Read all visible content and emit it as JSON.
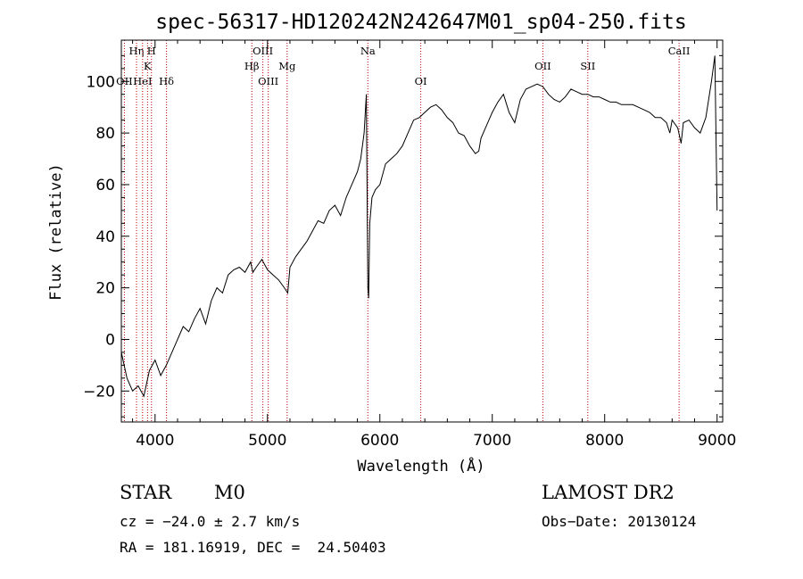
{
  "chart_data": {
    "type": "line",
    "title": "spec-56317-HD120242N242647M01_sp04-250.fits",
    "xlabel": "Wavelength (Å)",
    "ylabel": "Flux (relative)",
    "xlim": [
      3700,
      9050
    ],
    "ylim": [
      -32,
      116
    ],
    "xticks": [
      4000,
      5000,
      6000,
      7000,
      8000,
      9000
    ],
    "yticks": [
      -20,
      0,
      20,
      40,
      60,
      80,
      100
    ],
    "grid": false,
    "series": [
      {
        "x": [
          3700,
          3750,
          3800,
          3850,
          3900,
          3950,
          4000,
          4050,
          4100,
          4150,
          4200,
          4250,
          4300,
          4350,
          4400,
          4450,
          4500,
          4550,
          4600,
          4650,
          4700,
          4750,
          4800,
          4850,
          4870,
          4900,
          4950,
          5000,
          5050,
          5100,
          5150,
          5180,
          5200,
          5250,
          5300,
          5350,
          5400,
          5450,
          5500,
          5550,
          5600,
          5650,
          5700,
          5750,
          5800,
          5830,
          5860,
          5880,
          5893,
          5900,
          5910,
          5930,
          5960,
          6000,
          6050,
          6100,
          6150,
          6200,
          6250,
          6300,
          6350,
          6400,
          6450,
          6500,
          6550,
          6600,
          6650,
          6700,
          6750,
          6800,
          6850,
          6880,
          6900,
          6950,
          7000,
          7050,
          7100,
          7150,
          7200,
          7250,
          7300,
          7350,
          7400,
          7450,
          7500,
          7550,
          7600,
          7650,
          7700,
          7750,
          7800,
          7850,
          7900,
          7950,
          8000,
          8050,
          8100,
          8150,
          8200,
          8250,
          8300,
          8350,
          8400,
          8450,
          8500,
          8550,
          8580,
          8600,
          8650,
          8680,
          8700,
          8750,
          8800,
          8850,
          8900,
          8950,
          8980,
          9000
        ],
        "y": [
          -5,
          -15,
          -20,
          -18,
          -22,
          -12,
          -8,
          -14,
          -10,
          -5,
          0,
          5,
          3,
          8,
          12,
          6,
          15,
          20,
          18,
          25,
          27,
          28,
          26,
          30,
          26,
          28,
          31,
          27,
          25,
          23,
          20,
          18,
          28,
          32,
          35,
          38,
          42,
          46,
          45,
          50,
          52,
          48,
          55,
          60,
          65,
          70,
          80,
          95,
          20,
          16,
          45,
          55,
          58,
          60,
          68,
          70,
          72,
          75,
          80,
          85,
          86,
          88,
          90,
          91,
          89,
          86,
          84,
          80,
          79,
          75,
          72,
          73,
          78,
          83,
          88,
          92,
          95,
          88,
          84,
          93,
          97,
          98,
          99,
          98,
          95,
          93,
          92,
          94,
          97,
          96,
          95,
          95,
          94,
          94,
          93,
          92,
          92,
          91,
          91,
          91,
          90,
          89,
          88,
          86,
          86,
          84,
          80,
          85,
          82,
          76,
          84,
          85,
          82,
          80,
          86,
          100,
          110,
          50
        ]
      }
    ],
    "line_markers": [
      {
        "label": "Hη",
        "x": 3835,
        "row": 0
      },
      {
        "label": "H",
        "x": 3968,
        "row": 0
      },
      {
        "label": "K",
        "x": 3933,
        "row": 1
      },
      {
        "label": "OII",
        "x": 3727,
        "row": 2
      },
      {
        "label": "HeI",
        "x": 3889,
        "row": 2
      },
      {
        "label": "Hδ",
        "x": 4102,
        "row": 2
      },
      {
        "label": "OIII",
        "x": 4959,
        "row": 0
      },
      {
        "label": "Hβ",
        "x": 4861,
        "row": 1
      },
      {
        "label": "Mg",
        "x": 5175,
        "row": 1
      },
      {
        "label": "OIII",
        "x": 5007,
        "row": 2
      },
      {
        "label": "Na",
        "x": 5893,
        "row": 0
      },
      {
        "label": "OI",
        "x": 6364,
        "row": 2
      },
      {
        "label": "OII",
        "x": 7450,
        "row": 1
      },
      {
        "label": "SII",
        "x": 7850,
        "row": 1
      },
      {
        "label": "CaII",
        "x": 8662,
        "row": 0
      }
    ]
  },
  "info": {
    "object_class": "STAR",
    "subclass": "M0",
    "survey": "LAMOST DR2",
    "cz": "cz = −24.0 ± 2.7 km/s",
    "obs_date": "Obs−Date: 20130124",
    "coords": "RA = 181.16919, DEC =  24.50403"
  }
}
